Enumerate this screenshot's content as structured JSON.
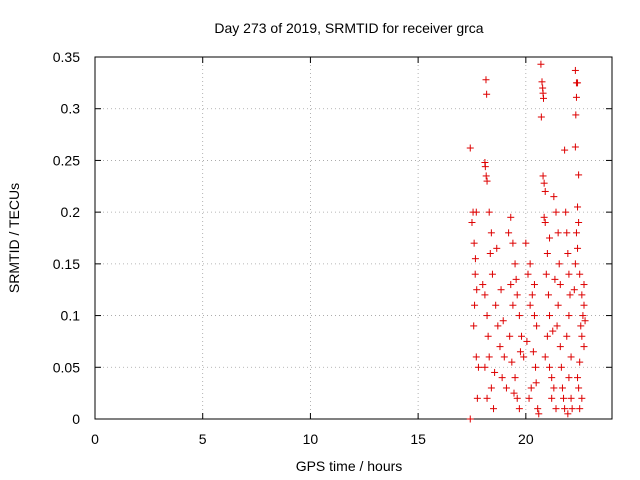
{
  "chart_data": {
    "type": "scatter",
    "title": "Day 273 of 2019, SRMTID for receiver grca",
    "xlabel": "GPS time / hours",
    "ylabel": "SRMTID / TECUs",
    "xlim": [
      0,
      24
    ],
    "ylim": [
      0,
      0.35
    ],
    "x_ticks": [
      0,
      5,
      10,
      15,
      20
    ],
    "y_ticks": [
      0,
      0.05,
      0.1,
      0.15,
      0.2,
      0.25,
      0.3,
      0.35
    ],
    "x_tick_labels": [
      "0",
      "5",
      "10",
      "15",
      "20"
    ],
    "y_tick_labels": [
      "0",
      "0.05",
      "0.1",
      "0.15",
      "0.2",
      "0.25",
      "0.3",
      "0.35"
    ],
    "grid": true,
    "marker": "+",
    "series_color": "#dd0000",
    "series": [
      {
        "name": "SRMTID",
        "points": [
          [
            17.42,
            0.0
          ],
          [
            17.42,
            0.262
          ],
          [
            17.55,
            0.2
          ],
          [
            17.6,
            0.17
          ],
          [
            17.65,
            0.14
          ],
          [
            17.7,
            0.2
          ],
          [
            17.62,
            0.11
          ],
          [
            17.58,
            0.09
          ],
          [
            17.7,
            0.06
          ],
          [
            17.75,
            0.02
          ],
          [
            17.8,
            0.05
          ],
          [
            17.5,
            0.19
          ],
          [
            17.66,
            0.155
          ],
          [
            17.72,
            0.125
          ],
          [
            18.15,
            0.328
          ],
          [
            18.18,
            0.314
          ],
          [
            18.1,
            0.248
          ],
          [
            18.12,
            0.244
          ],
          [
            18.16,
            0.235
          ],
          [
            18.2,
            0.23
          ],
          [
            18.3,
            0.2
          ],
          [
            18.4,
            0.18
          ],
          [
            18.35,
            0.16
          ],
          [
            18.0,
            0.13
          ],
          [
            18.1,
            0.12
          ],
          [
            18.2,
            0.1
          ],
          [
            18.25,
            0.08
          ],
          [
            18.3,
            0.06
          ],
          [
            18.1,
            0.05
          ],
          [
            18.4,
            0.03
          ],
          [
            18.2,
            0.02
          ],
          [
            18.5,
            0.01
          ],
          [
            18.45,
            0.14
          ],
          [
            18.6,
            0.11
          ],
          [
            18.7,
            0.09
          ],
          [
            18.8,
            0.07
          ],
          [
            18.9,
            0.04
          ],
          [
            19.0,
            0.06
          ],
          [
            19.1,
            0.03
          ],
          [
            18.55,
            0.045
          ],
          [
            18.65,
            0.165
          ],
          [
            18.85,
            0.125
          ],
          [
            18.95,
            0.095
          ],
          [
            19.2,
            0.18
          ],
          [
            19.3,
            0.195
          ],
          [
            19.4,
            0.17
          ],
          [
            19.5,
            0.15
          ],
          [
            19.6,
            0.12
          ],
          [
            19.7,
            0.1
          ],
          [
            19.8,
            0.08
          ],
          [
            19.9,
            0.06
          ],
          [
            19.5,
            0.04
          ],
          [
            19.6,
            0.02
          ],
          [
            19.7,
            0.01
          ],
          [
            19.3,
            0.13
          ],
          [
            19.4,
            0.11
          ],
          [
            19.25,
            0.08
          ],
          [
            19.35,
            0.055
          ],
          [
            19.45,
            0.025
          ],
          [
            19.55,
            0.135
          ],
          [
            19.75,
            0.065
          ],
          [
            20.0,
            0.17
          ],
          [
            20.1,
            0.14
          ],
          [
            20.2,
            0.15
          ],
          [
            20.3,
            0.12
          ],
          [
            20.4,
            0.1
          ],
          [
            20.5,
            0.09
          ],
          [
            20.35,
            0.065
          ],
          [
            20.45,
            0.05
          ],
          [
            20.25,
            0.03
          ],
          [
            20.15,
            0.02
          ],
          [
            20.55,
            0.01
          ],
          [
            20.05,
            0.075
          ],
          [
            20.2,
            0.11
          ],
          [
            20.4,
            0.13
          ],
          [
            20.6,
            0.005
          ],
          [
            20.48,
            0.035
          ],
          [
            20.7,
            0.343
          ],
          [
            20.75,
            0.326
          ],
          [
            20.78,
            0.32
          ],
          [
            20.8,
            0.315
          ],
          [
            20.82,
            0.31
          ],
          [
            20.72,
            0.292
          ],
          [
            20.8,
            0.235
          ],
          [
            20.85,
            0.228
          ],
          [
            20.9,
            0.22
          ],
          [
            20.85,
            0.195
          ],
          [
            20.9,
            0.19
          ],
          [
            21.0,
            0.16
          ],
          [
            20.95,
            0.14
          ],
          [
            21.05,
            0.12
          ],
          [
            21.1,
            0.1
          ],
          [
            21.0,
            0.08
          ],
          [
            20.9,
            0.06
          ],
          [
            21.1,
            0.05
          ],
          [
            21.2,
            0.04
          ],
          [
            21.3,
            0.03
          ],
          [
            21.2,
            0.02
          ],
          [
            21.4,
            0.01
          ],
          [
            21.1,
            0.175
          ],
          [
            21.3,
            0.215
          ],
          [
            21.4,
            0.2
          ],
          [
            21.5,
            0.18
          ],
          [
            21.55,
            0.15
          ],
          [
            21.6,
            0.13
          ],
          [
            21.5,
            0.11
          ],
          [
            21.45,
            0.09
          ],
          [
            21.6,
            0.07
          ],
          [
            21.65,
            0.05
          ],
          [
            21.7,
            0.03
          ],
          [
            21.75,
            0.02
          ],
          [
            21.8,
            0.01
          ],
          [
            21.35,
            0.135
          ],
          [
            21.25,
            0.085
          ],
          [
            21.8,
            0.26
          ],
          [
            21.85,
            0.2
          ],
          [
            21.9,
            0.18
          ],
          [
            21.95,
            0.16
          ],
          [
            22.0,
            0.14
          ],
          [
            22.05,
            0.12
          ],
          [
            22.0,
            0.1
          ],
          [
            21.9,
            0.08
          ],
          [
            22.1,
            0.06
          ],
          [
            22.0,
            0.04
          ],
          [
            22.1,
            0.02
          ],
          [
            22.15,
            0.01
          ],
          [
            21.95,
            0.005
          ],
          [
            22.3,
            0.337
          ],
          [
            22.35,
            0.325
          ],
          [
            22.4,
            0.325
          ],
          [
            22.35,
            0.311
          ],
          [
            22.32,
            0.294
          ],
          [
            22.3,
            0.263
          ],
          [
            22.45,
            0.236
          ],
          [
            22.4,
            0.205
          ],
          [
            22.45,
            0.19
          ],
          [
            22.35,
            0.18
          ],
          [
            22.4,
            0.165
          ],
          [
            22.3,
            0.15
          ],
          [
            22.5,
            0.14
          ],
          [
            22.6,
            0.12
          ],
          [
            22.7,
            0.11
          ],
          [
            22.65,
            0.1
          ],
          [
            22.55,
            0.09
          ],
          [
            22.6,
            0.08
          ],
          [
            22.7,
            0.07
          ],
          [
            22.5,
            0.055
          ],
          [
            22.4,
            0.04
          ],
          [
            22.45,
            0.03
          ],
          [
            22.6,
            0.02
          ],
          [
            22.5,
            0.01
          ],
          [
            22.25,
            0.125
          ],
          [
            22.75,
            0.095
          ],
          [
            22.7,
            0.13
          ]
        ]
      }
    ]
  }
}
